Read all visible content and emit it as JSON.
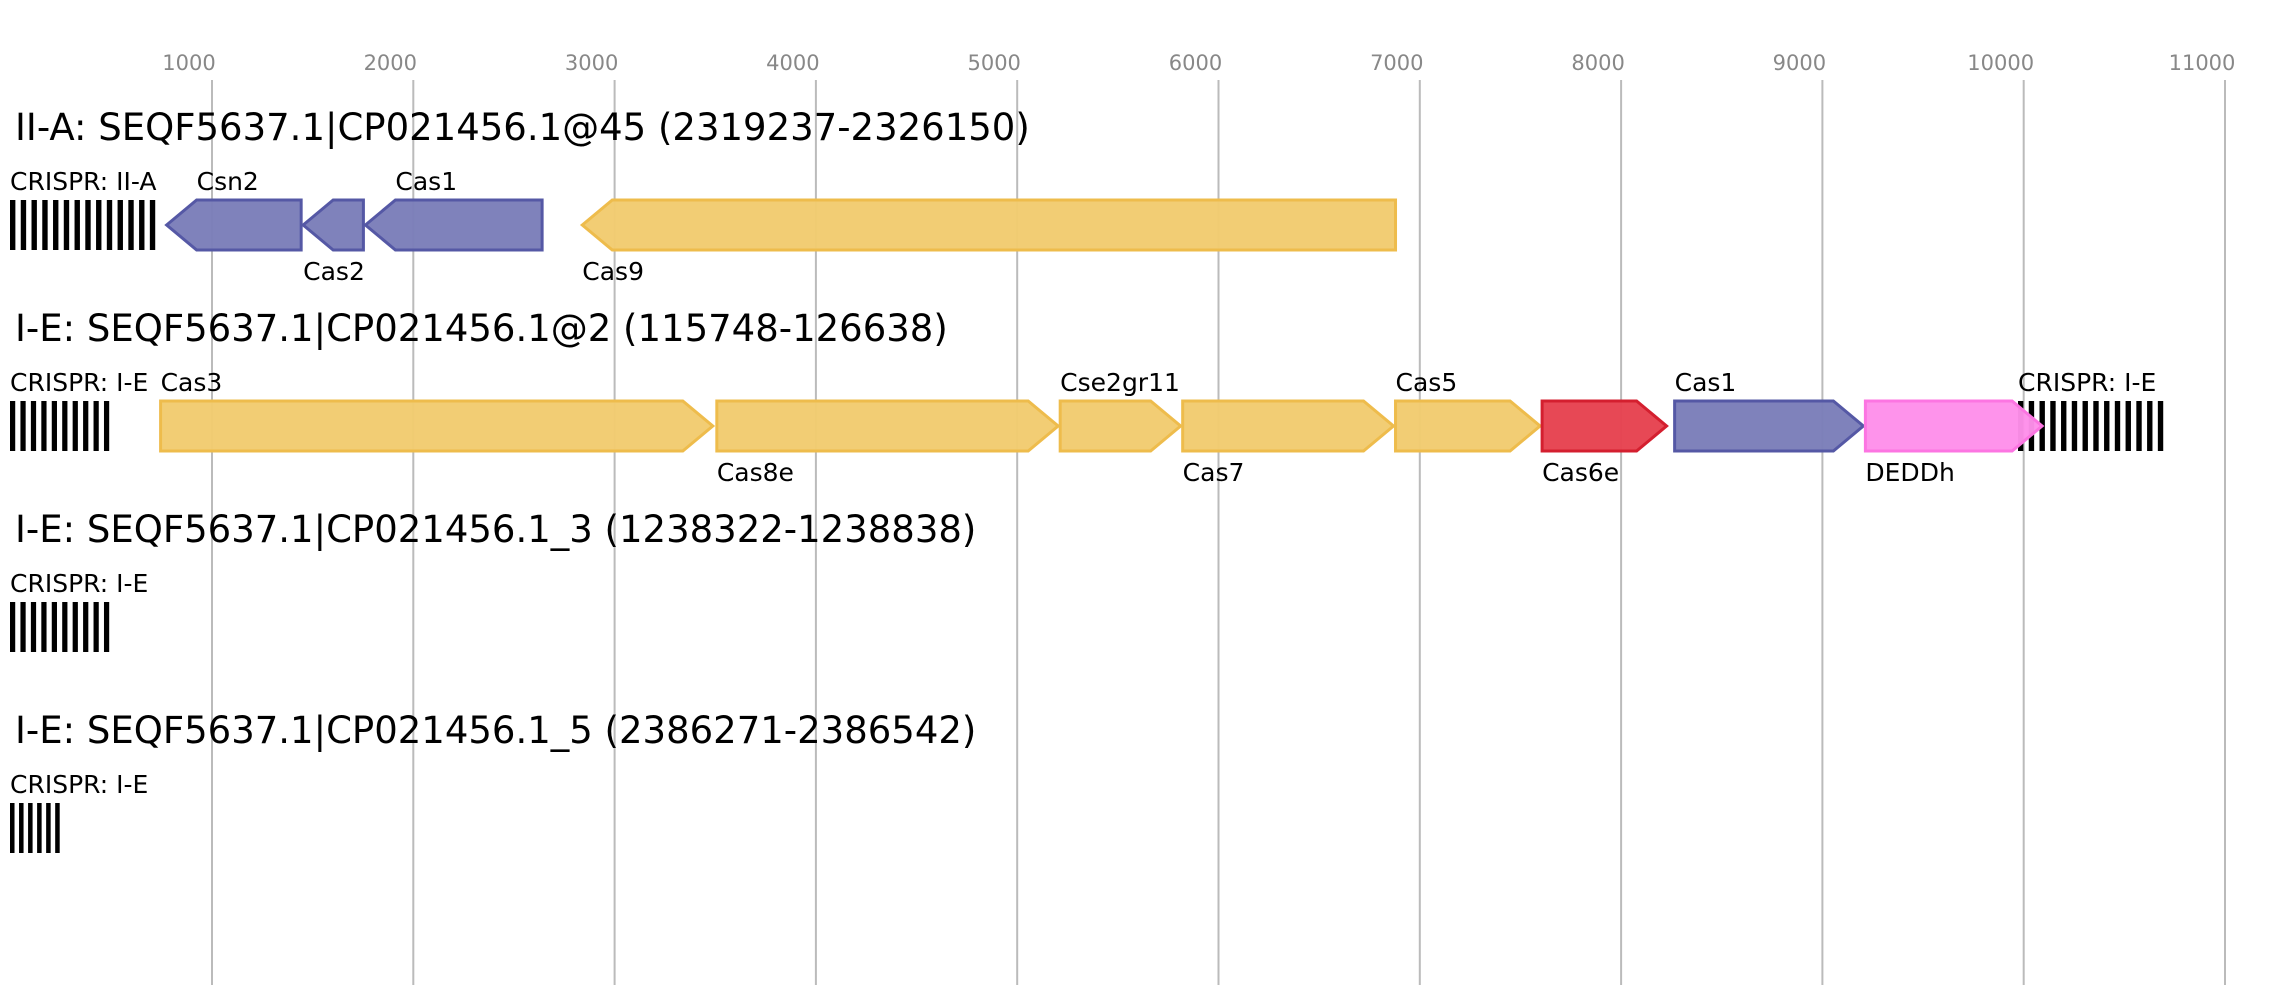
{
  "axis": {
    "ticks": [
      "1000",
      "2000",
      "3000",
      "4000",
      "5000",
      "6000",
      "7000",
      "8000",
      "9000",
      "10000",
      "11000"
    ]
  },
  "colors": {
    "blue": "#7b7eb9",
    "blue_stroke": "#5558a5",
    "yellow": "#f2cb70",
    "yellow_stroke": "#eebc4c",
    "red": "#e6424f",
    "red_stroke": "#d41f2f",
    "pink": "#fe90ea",
    "pink_stroke": "#fc75e2",
    "crispr": "#000000",
    "grid": "#bbbbbb"
  },
  "loci": [
    {
      "title": "II-A: SEQF5637.1|CP021456.1@45 (2319237-2326150)",
      "crispr": [
        {
          "label": "CRISPR: II-A",
          "start": 0,
          "end": 750,
          "bars": 14
        }
      ],
      "genes": [
        {
          "label": "Csn2",
          "start": 780,
          "end": 1450,
          "strand": "-",
          "color": "blue",
          "label_pos": "above"
        },
        {
          "label": "Cas2",
          "start": 1460,
          "end": 1760,
          "strand": "-",
          "color": "blue",
          "label_pos": "below"
        },
        {
          "label": "Cas1",
          "start": 1770,
          "end": 2650,
          "strand": "-",
          "color": "blue",
          "label_pos": "above"
        },
        {
          "label": "Cas9",
          "start": 2850,
          "end": 6900,
          "strand": "-",
          "color": "yellow",
          "label_pos": "below"
        }
      ]
    },
    {
      "title": "I-E: SEQF5637.1|CP021456.1@2 (115748-126638)",
      "crispr": [
        {
          "label": "CRISPR: I-E",
          "start": 0,
          "end": 520,
          "bars": 10
        },
        {
          "label": "CRISPR: I-E",
          "start": 10000,
          "end": 10750,
          "bars": 14
        }
      ],
      "genes": [
        {
          "label": "Cas3",
          "start": 750,
          "end": 3500,
          "strand": "+",
          "color": "yellow",
          "label_pos": "above"
        },
        {
          "label": "Cas8e",
          "start": 3520,
          "end": 5220,
          "strand": "+",
          "color": "yellow",
          "label_pos": "below"
        },
        {
          "label": "Cse2gr11",
          "start": 5230,
          "end": 5830,
          "strand": "+",
          "color": "yellow",
          "label_pos": "above"
        },
        {
          "label": "Cas7",
          "start": 5840,
          "end": 6890,
          "strand": "+",
          "color": "yellow",
          "label_pos": "below"
        },
        {
          "label": "Cas5",
          "start": 6900,
          "end": 7620,
          "strand": "+",
          "color": "yellow",
          "label_pos": "above"
        },
        {
          "label": "Cas6e",
          "start": 7630,
          "end": 8250,
          "strand": "+",
          "color": "red",
          "label_pos": "below"
        },
        {
          "label": "Cas1",
          "start": 8290,
          "end": 9230,
          "strand": "+",
          "color": "blue",
          "label_pos": "above"
        },
        {
          "label": "DEDDh",
          "start": 9240,
          "end": 10120,
          "strand": "+",
          "color": "pink",
          "label_pos": "below"
        }
      ]
    },
    {
      "title": "I-E: SEQF5637.1|CP021456.1_3 (1238322-1238838)",
      "crispr": [
        {
          "label": "CRISPR: I-E",
          "start": 0,
          "end": 520,
          "bars": 10
        }
      ],
      "genes": []
    },
    {
      "title": "I-E: SEQF5637.1|CP021456.1_5 (2386271-2386542)",
      "crispr": [
        {
          "label": "CRISPR: I-E",
          "start": 0,
          "end": 270,
          "bars": 6
        }
      ],
      "genes": []
    }
  ]
}
